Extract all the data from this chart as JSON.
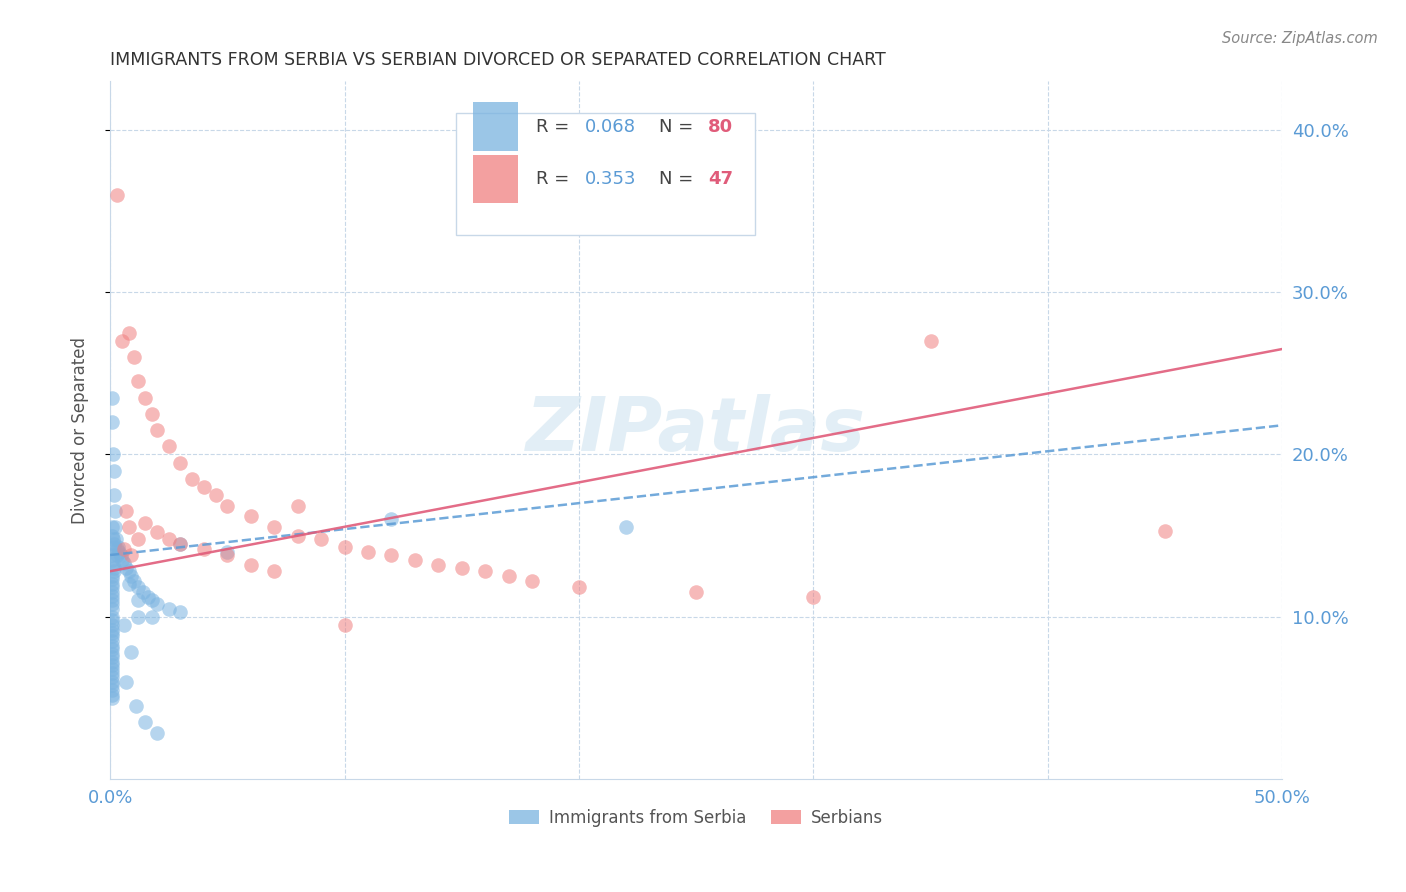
{
  "title": "IMMIGRANTS FROM SERBIA VS SERBIAN DIVORCED OR SEPARATED CORRELATION CHART",
  "source": "Source: ZipAtlas.com",
  "ylabel": "Divorced or Separated",
  "watermark": "ZIPatlas",
  "xmin": 0.0,
  "xmax": 0.5,
  "ymin": 0.0,
  "ymax": 0.43,
  "yticks": [
    0.1,
    0.2,
    0.3,
    0.4
  ],
  "ytick_labels": [
    "10.0%",
    "20.0%",
    "30.0%",
    "40.0%"
  ],
  "xticks": [
    0.0,
    0.1,
    0.2,
    0.3,
    0.4,
    0.5
  ],
  "xtick_labels": [
    "0.0%",
    "",
    "",
    "",
    "",
    "50.0%"
  ],
  "blue_color": "#7ab3e0",
  "pink_color": "#f08080",
  "blue_line_color": "#5b9bd5",
  "pink_line_color": "#e05c7a",
  "axis_color": "#5b9bd5",
  "grid_color": "#c8d8e8",
  "title_color": "#333333",
  "legend_label1": "Immigrants from Serbia",
  "legend_label2": "Serbians",
  "blue_line_y_start": 0.138,
  "blue_line_y_end": 0.218,
  "pink_line_y_start": 0.128,
  "pink_line_y_end": 0.265,
  "blue_x": [
    0.0008,
    0.001,
    0.0012,
    0.0015,
    0.0018,
    0.002,
    0.0022,
    0.0025,
    0.0028,
    0.003,
    0.0008,
    0.001,
    0.0012,
    0.0015,
    0.0018,
    0.0008,
    0.001,
    0.0012,
    0.0015,
    0.0018,
    0.0008,
    0.001,
    0.0008,
    0.001,
    0.0008,
    0.001,
    0.0008,
    0.001,
    0.0008,
    0.0008,
    0.0008,
    0.0008,
    0.0008,
    0.0008,
    0.0008,
    0.0008,
    0.0008,
    0.0008,
    0.0008,
    0.0008,
    0.0008,
    0.0008,
    0.0008,
    0.0008,
    0.0008,
    0.0008,
    0.0008,
    0.0008,
    0.0008,
    0.0008,
    0.0035,
    0.004,
    0.0045,
    0.005,
    0.006,
    0.007,
    0.008,
    0.009,
    0.01,
    0.012,
    0.014,
    0.016,
    0.018,
    0.02,
    0.025,
    0.03,
    0.012,
    0.018,
    0.05,
    0.12,
    0.22,
    0.03,
    0.008,
    0.012,
    0.006,
    0.009,
    0.007,
    0.011,
    0.015,
    0.02
  ],
  "blue_y": [
    0.235,
    0.22,
    0.2,
    0.19,
    0.175,
    0.165,
    0.155,
    0.148,
    0.142,
    0.138,
    0.155,
    0.15,
    0.148,
    0.145,
    0.143,
    0.138,
    0.135,
    0.133,
    0.13,
    0.128,
    0.125,
    0.123,
    0.12,
    0.118,
    0.115,
    0.113,
    0.11,
    0.108,
    0.105,
    0.1,
    0.098,
    0.095,
    0.092,
    0.09,
    0.088,
    0.085,
    0.082,
    0.08,
    0.077,
    0.075,
    0.072,
    0.07,
    0.068,
    0.065,
    0.063,
    0.06,
    0.058,
    0.055,
    0.052,
    0.05,
    0.143,
    0.14,
    0.138,
    0.135,
    0.133,
    0.13,
    0.128,
    0.125,
    0.122,
    0.118,
    0.115,
    0.112,
    0.11,
    0.108,
    0.105,
    0.103,
    0.1,
    0.1,
    0.14,
    0.16,
    0.155,
    0.145,
    0.12,
    0.11,
    0.095,
    0.078,
    0.06,
    0.045,
    0.035,
    0.028
  ],
  "pink_x": [
    0.003,
    0.005,
    0.008,
    0.01,
    0.012,
    0.015,
    0.018,
    0.02,
    0.025,
    0.03,
    0.035,
    0.04,
    0.045,
    0.05,
    0.06,
    0.07,
    0.08,
    0.09,
    0.1,
    0.11,
    0.12,
    0.13,
    0.14,
    0.15,
    0.16,
    0.17,
    0.18,
    0.2,
    0.25,
    0.3,
    0.35,
    0.45,
    0.008,
    0.012,
    0.006,
    0.009,
    0.007,
    0.015,
    0.02,
    0.025,
    0.03,
    0.04,
    0.05,
    0.06,
    0.07,
    0.08,
    0.1
  ],
  "pink_y": [
    0.36,
    0.27,
    0.275,
    0.26,
    0.245,
    0.235,
    0.225,
    0.215,
    0.205,
    0.195,
    0.185,
    0.18,
    0.175,
    0.168,
    0.162,
    0.155,
    0.15,
    0.148,
    0.143,
    0.14,
    0.138,
    0.135,
    0.132,
    0.13,
    0.128,
    0.125,
    0.122,
    0.118,
    0.115,
    0.112,
    0.27,
    0.153,
    0.155,
    0.148,
    0.142,
    0.138,
    0.165,
    0.158,
    0.152,
    0.148,
    0.145,
    0.142,
    0.138,
    0.132,
    0.128,
    0.168,
    0.095
  ]
}
